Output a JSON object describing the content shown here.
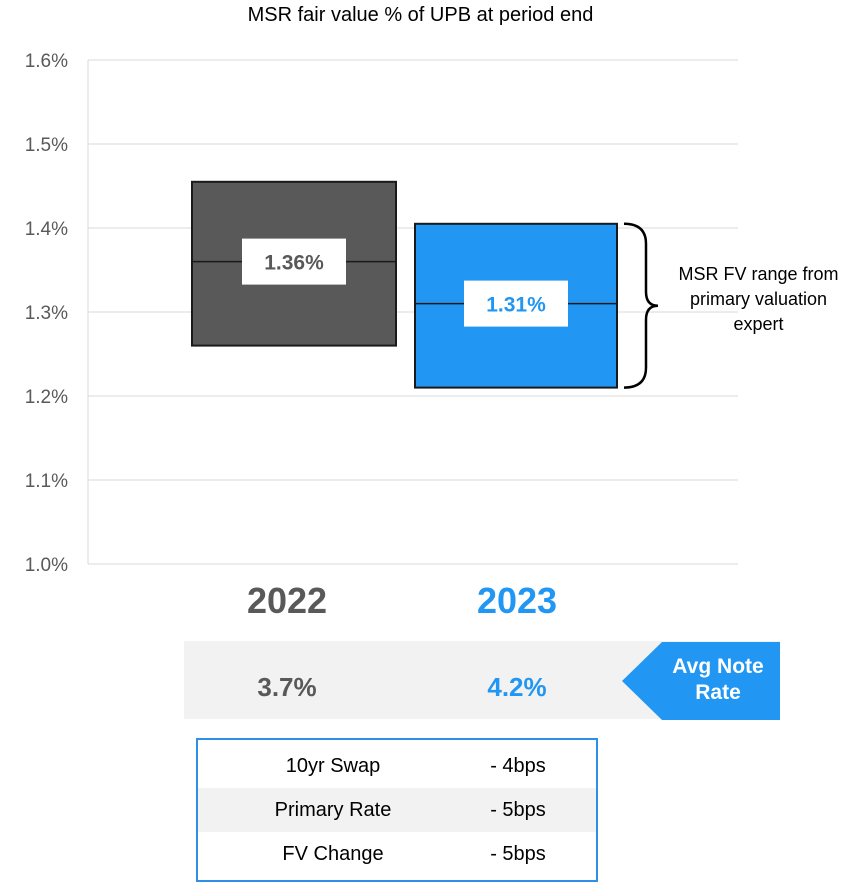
{
  "chart_data": {
    "type": "box",
    "title": "MSR fair value % of UPB at period end",
    "ylim": [
      1.0,
      1.6
    ],
    "yticks": [
      "1.0%",
      "1.1%",
      "1.2%",
      "1.3%",
      "1.4%",
      "1.5%",
      "1.6%"
    ],
    "grid": true,
    "series": [
      {
        "category": "2022",
        "low": 1.26,
        "high": 1.455,
        "mid": 1.36,
        "mid_label": "1.36%",
        "color": "#595959"
      },
      {
        "category": "2023",
        "low": 1.21,
        "high": 1.405,
        "mid": 1.31,
        "mid_label": "1.31%",
        "color": "#2196f3"
      }
    ],
    "annotation": "MSR FV range from primary valuation expert"
  },
  "note_rates": {
    "label": "Avg Note Rate",
    "values": [
      {
        "year": "2022",
        "rate": "3.7%",
        "color": "#595959"
      },
      {
        "year": "2023",
        "rate": "4.2%",
        "color": "#2196f3"
      }
    ]
  },
  "changes_table": {
    "rows": [
      {
        "label": "10yr Swap",
        "value": "- 4bps"
      },
      {
        "label": "Primary Rate",
        "value": "- 5bps"
      },
      {
        "label": "FV Change",
        "value": "- 5bps"
      }
    ]
  },
  "colors": {
    "accent": "#2196f3",
    "dark": "#595959",
    "band": "#f2f2f2",
    "border": "#2e8fe6"
  }
}
